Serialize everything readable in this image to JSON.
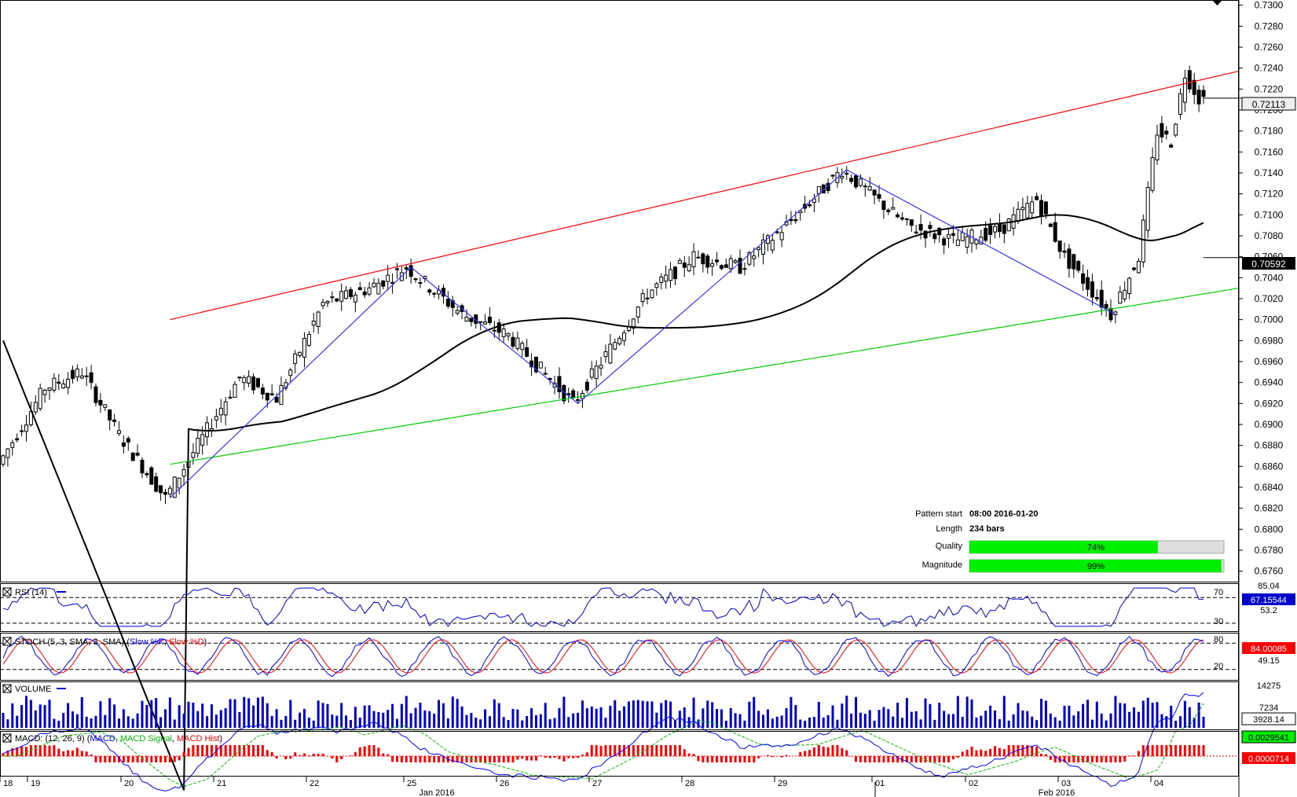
{
  "main": {
    "price_axis": [
      "0.7300",
      "0.7280",
      "0.7260",
      "0.7240",
      "0.7220",
      "0.7200",
      "0.7180",
      "0.7160",
      "0.7140",
      "0.7120",
      "0.7100",
      "0.7080",
      "0.7060",
      "0.7040",
      "0.7020",
      "0.7000",
      "0.6980",
      "0.6960",
      "0.6940",
      "0.6920",
      "0.6900",
      "0.6880",
      "0.6860",
      "0.6840",
      "0.6820",
      "0.6800",
      "0.6780",
      "0.6760"
    ],
    "current_price_label": "0.72113",
    "ma_price_label": "0.70592",
    "colors": {
      "bull": "#ffffff",
      "bear": "#000000",
      "upper_line": "#ff0000",
      "lower_line": "#00cc00",
      "pattern": "#3333ff",
      "ma": "#000000"
    }
  },
  "pattern_info": {
    "start_label": "Pattern start",
    "start_value": "08:00 2016-01-20",
    "length_label": "Length",
    "length_value": "234 bars",
    "quality_label": "Quality",
    "quality_value": "74%",
    "quality_fraction": 0.74,
    "magnitude_label": "Magnitude",
    "magnitude_value": "99%",
    "magnitude_fraction": 0.99
  },
  "rsi": {
    "title": "RSI (14)",
    "levels": [
      "85.04",
      "70",
      "53.2",
      "30"
    ],
    "value_label": "67.15544"
  },
  "stoch": {
    "title_prefix": "STOCH (5, 3, SMA, 3, SMA) (",
    "k_label": "Slow %K",
    "sep": ", ",
    "d_label": "Slow %D",
    "title_suffix": ")",
    "levels": [
      "80",
      "49.15",
      "20"
    ],
    "value_label": "84.00085"
  },
  "volume": {
    "title": "VOLUME",
    "levels": [
      "14275",
      "7234"
    ],
    "value_label": "3928.14"
  },
  "macd": {
    "title_prefix": "MACD: (12, 26, 9) (",
    "macd_label": "MACD",
    "sep1": ", ",
    "signal_label": "MACD Signal",
    "sep2": ", ",
    "hist_label": "MACD Hist",
    "title_suffix": ")",
    "value_label_1": "0.0029541",
    "value_label_2": "0.0000714"
  },
  "time_axis": {
    "days": [
      "18",
      "19",
      "20",
      "21",
      "22",
      "25",
      "26",
      "27",
      "28",
      "29",
      "01",
      "02",
      "03",
      "04"
    ],
    "months": [
      "Jan 2016",
      "Feb 2016"
    ]
  },
  "chart_data": {
    "type": "candlestick",
    "instrument_note": "",
    "y_range": [
      0.675,
      0.7305
    ],
    "key_points": [
      {
        "x": "2016-01-20",
        "y": 0.683
      },
      {
        "x": "2016-01-22",
        "y": 0.705
      },
      {
        "x": "2016-01-26",
        "y": 0.692
      },
      {
        "x": "2016-01-29",
        "y": 0.7143
      },
      {
        "x": "2016-02-03",
        "y": 0.7005
      },
      {
        "x": "2016-02-04",
        "y": 0.7235
      }
    ],
    "last_close": 0.72113,
    "moving_average_last": 0.70592,
    "rsi_last": 67.15544,
    "stoch_last": 84.00085,
    "volume_last": 3928.14,
    "macd_last": 0.0029541,
    "macd_hist_last": 7.14e-05
  }
}
